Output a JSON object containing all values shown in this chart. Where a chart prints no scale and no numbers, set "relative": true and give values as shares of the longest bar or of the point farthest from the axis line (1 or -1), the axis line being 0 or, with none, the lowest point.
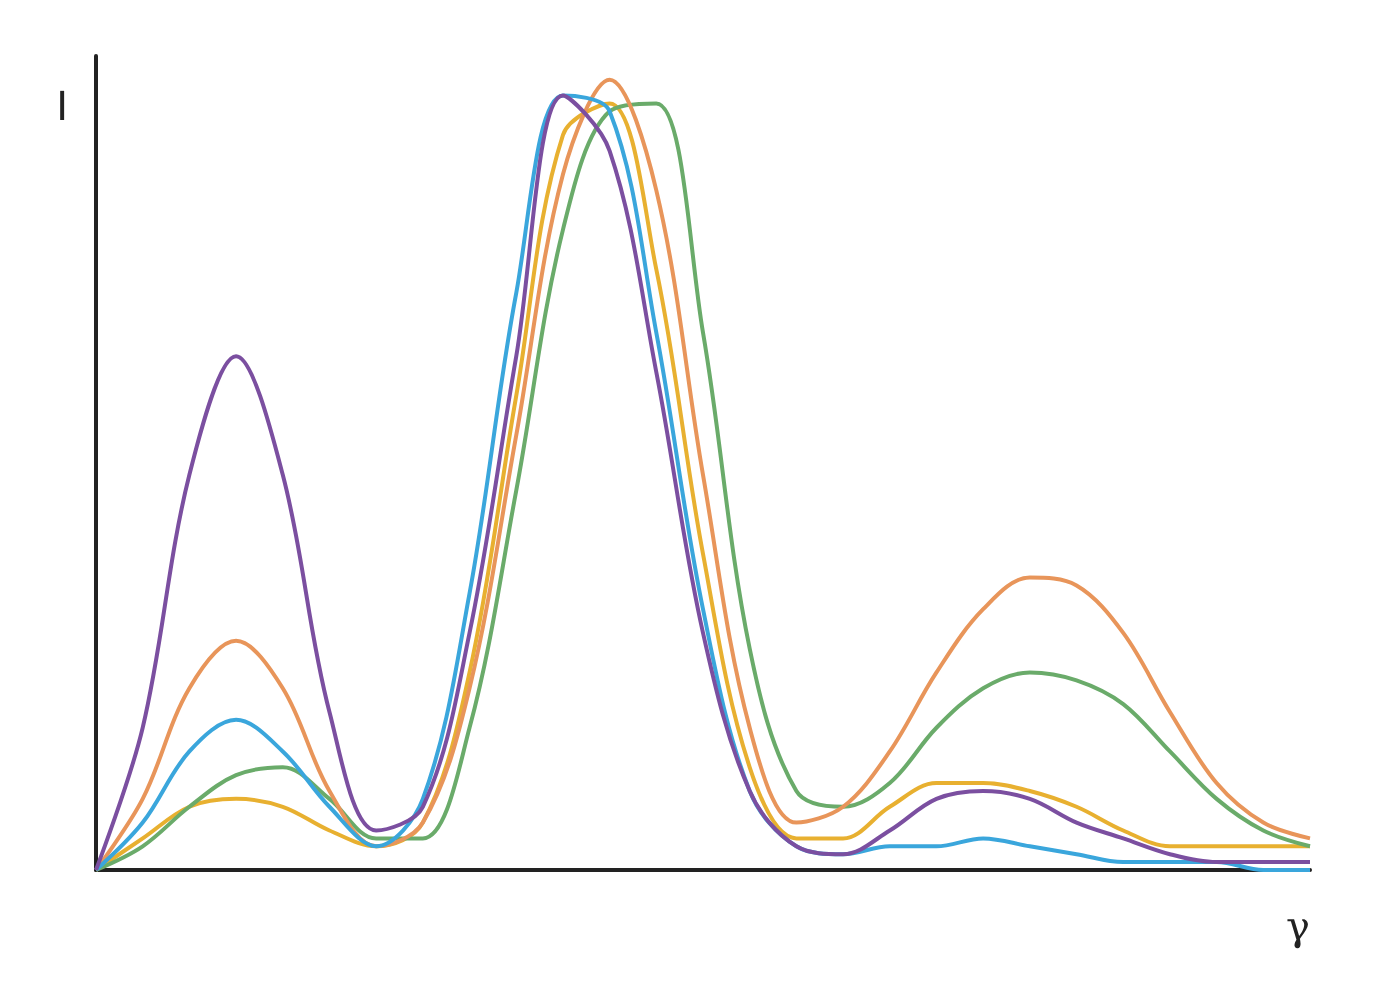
{
  "chart_data": {
    "type": "line",
    "relative": true,
    "xlabel": "γ",
    "ylabel": "I",
    "categories": [
      null,
      null,
      null,
      null,
      null,
      null,
      null,
      null,
      null,
      null,
      null,
      null,
      null,
      null,
      null,
      null,
      null,
      null,
      null,
      null,
      null,
      null,
      null,
      null,
      null,
      null,
      null
    ],
    "series": [
      {
        "color": "#e8b030",
        "values": [
          0,
          0.04,
          0.08,
          0.09,
          0.08,
          0.05,
          0.03,
          0.06,
          0.25,
          0.6,
          0.93,
          0.97,
          0.76,
          0.4,
          0.13,
          0.04,
          0.04,
          0.08,
          0.11,
          0.11,
          0.1,
          0.08,
          0.05,
          0.03,
          0.03,
          0.03,
          0.03
        ]
      },
      {
        "color": "#6aab6a",
        "values": [
          0,
          0.03,
          0.08,
          0.12,
          0.13,
          0.09,
          0.04,
          0.04,
          0.18,
          0.48,
          0.81,
          0.96,
          0.97,
          0.68,
          0.28,
          0.1,
          0.08,
          0.11,
          0.18,
          0.23,
          0.25,
          0.24,
          0.21,
          0.15,
          0.09,
          0.05,
          0.03
        ]
      },
      {
        "color": "#e8955a",
        "values": [
          0,
          0.09,
          0.23,
          0.29,
          0.23,
          0.1,
          0.03,
          0.06,
          0.23,
          0.55,
          0.88,
          1,
          0.86,
          0.5,
          0.18,
          0.06,
          0.08,
          0.15,
          0.25,
          0.33,
          0.37,
          0.36,
          0.3,
          0.2,
          0.11,
          0.06,
          0.04
        ]
      },
      {
        "color": "#3aa6dc",
        "values": [
          0,
          0.06,
          0.15,
          0.19,
          0.15,
          0.08,
          0.03,
          0.09,
          0.35,
          0.73,
          0.98,
          0.96,
          0.68,
          0.33,
          0.1,
          0.03,
          0.02,
          0.03,
          0.03,
          0.04,
          0.03,
          0.02,
          0.01,
          0.01,
          0.01,
          0,
          0
        ]
      },
      {
        "color": "#7b4fa0",
        "values": [
          0,
          0.18,
          0.5,
          0.65,
          0.5,
          0.2,
          0.05,
          0.08,
          0.3,
          0.65,
          0.98,
          0.91,
          0.63,
          0.3,
          0.1,
          0.03,
          0.02,
          0.05,
          0.09,
          0.1,
          0.09,
          0.06,
          0.04,
          0.02,
          0.01,
          0.01,
          0.01
        ]
      }
    ]
  }
}
